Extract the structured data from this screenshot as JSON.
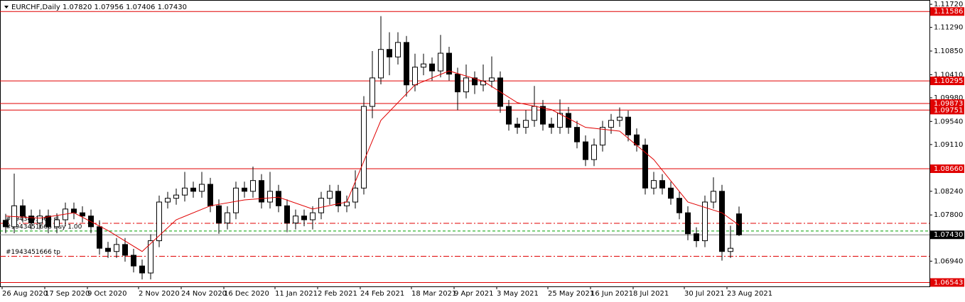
{
  "chart_data": {
    "type": "candlestick",
    "title": "EURCHF,Daily  1.07820 1.07956 1.07406 1.07430",
    "ylim": [
      1.0647,
      1.118
    ],
    "yticks": [
      {
        "value": 1.1172,
        "label": "1.11720"
      },
      {
        "value": 1.1129,
        "label": "1.11290"
      },
      {
        "value": 1.1085,
        "label": "1.10850"
      },
      {
        "value": 1.1041,
        "label": "1.10410"
      },
      {
        "value": 1.0998,
        "label": "1.09980"
      },
      {
        "value": 1.0954,
        "label": "1.09540"
      },
      {
        "value": 1.0911,
        "label": "1.09110"
      },
      {
        "value": 1.0824,
        "label": "1.08240"
      },
      {
        "value": 1.078,
        "label": "1.07800"
      },
      {
        "value": 1.0694,
        "label": "1.06940"
      }
    ],
    "categories": [
      "26 Aug 2020",
      null,
      null,
      null,
      null,
      "17 Sep 2020",
      null,
      null,
      null,
      null,
      "9 Oct 2020",
      null,
      null,
      null,
      null,
      null,
      "2 Nov 2020",
      null,
      null,
      null,
      null,
      "24 Nov 2020",
      null,
      null,
      null,
      null,
      "16 Dec 2020",
      null,
      null,
      null,
      null,
      null,
      "11 Jan 2021",
      null,
      null,
      null,
      null,
      "2 Feb 2021",
      null,
      null,
      null,
      null,
      "24 Feb 2021",
      null,
      null,
      null,
      null,
      null,
      "18 Mar 2021",
      null,
      null,
      null,
      null,
      "9 Apr 2021",
      null,
      null,
      null,
      null,
      "3 May 2021",
      null,
      null,
      null,
      null,
      null,
      "25 May 2021",
      null,
      null,
      null,
      null,
      "16 Jun 2021",
      null,
      null,
      null,
      null,
      "8 Jul 2021",
      null,
      null,
      null,
      null,
      null,
      "30 Jul 2021",
      null,
      null,
      null,
      null,
      "23 Aug 2021",
      null
    ],
    "open": [
      1.077,
      1.0758,
      1.0797,
      1.0778,
      1.0765,
      1.0778,
      1.0758,
      1.0771,
      1.0791,
      1.0784,
      1.0778,
      1.0758,
      1.0718,
      1.0712,
      1.0725,
      1.0705,
      1.0685,
      1.0672,
      1.0732,
      1.0804,
      1.0811,
      1.0817,
      1.083,
      1.0824,
      1.0837,
      1.0797,
      1.0765,
      1.0784,
      1.083,
      1.0824,
      1.0844,
      1.0804,
      1.0824,
      1.0797,
      1.0765,
      1.0778,
      1.0771,
      1.0784,
      1.0811,
      1.0824,
      1.0797,
      1.0804,
      1.083,
      1.0982,
      1.1035,
      1.1088,
      1.1074,
      1.1101,
      1.1022,
      1.1055,
      1.1061,
      1.1048,
      1.1081,
      1.1042,
      1.1009,
      1.1035,
      1.1022,
      1.1029,
      1.1035,
      1.0982,
      1.0949,
      1.0943,
      1.0956,
      1.0982,
      1.0949,
      1.0943,
      1.0969,
      1.0943,
      1.0916,
      1.0883,
      1.091,
      1.0943,
      1.0956,
      1.0962,
      1.0929,
      1.091,
      1.083,
      1.0844,
      1.083,
      1.0811,
      1.0784,
      1.0745,
      1.0732,
      1.0804,
      1.0824,
      1.0712,
      1.0782
    ],
    "high": [
      1.0782,
      1.0857,
      1.0809,
      1.079,
      1.079,
      1.079,
      1.0783,
      1.0803,
      1.0803,
      1.0796,
      1.079,
      1.077,
      1.073,
      1.0737,
      1.0737,
      1.0717,
      1.0697,
      1.0744,
      1.0816,
      1.0823,
      1.0829,
      1.086,
      1.0842,
      1.086,
      1.0849,
      1.0809,
      1.0796,
      1.0842,
      1.0842,
      1.087,
      1.0856,
      1.086,
      1.0836,
      1.0809,
      1.079,
      1.079,
      1.0796,
      1.0823,
      1.0836,
      1.0836,
      1.0816,
      1.0863,
      1.1001,
      1.1085,
      1.115,
      1.112,
      1.112,
      1.1113,
      1.108,
      1.108,
      1.1073,
      1.1115,
      1.1093,
      1.1054,
      1.106,
      1.1047,
      1.106,
      1.1075,
      1.1047,
      1.0994,
      1.0961,
      1.0975,
      1.102,
      1.0994,
      1.0961,
      1.0995,
      1.0981,
      1.0955,
      1.0928,
      1.0922,
      1.0955,
      1.0968,
      1.098,
      1.0974,
      1.0941,
      1.0922,
      1.086,
      1.0856,
      1.0842,
      1.0823,
      1.0796,
      1.0757,
      1.0816,
      1.085,
      1.0836,
      1.076,
      1.07956
    ],
    "low": [
      1.0746,
      1.0746,
      1.0766,
      1.0753,
      1.0753,
      1.0746,
      1.0746,
      1.0759,
      1.0772,
      1.0766,
      1.0746,
      1.0706,
      1.07,
      1.07,
      1.0693,
      1.0673,
      1.066,
      1.066,
      1.072,
      1.0792,
      1.0799,
      1.0805,
      1.0812,
      1.0812,
      1.0785,
      1.0745,
      1.0753,
      1.0772,
      1.0812,
      1.0812,
      1.0792,
      1.0792,
      1.0785,
      1.0748,
      1.0753,
      1.0759,
      1.0753,
      1.0772,
      1.0799,
      1.0785,
      1.0785,
      1.0792,
      1.0818,
      1.096,
      1.1023,
      1.104,
      1.106,
      1.1,
      1.101,
      1.104,
      1.103,
      1.1036,
      1.103,
      1.0975,
      1.0997,
      1.1005,
      1.101,
      1.1017,
      1.097,
      1.0937,
      1.0931,
      1.0931,
      1.0944,
      1.0937,
      1.0931,
      1.0931,
      1.0931,
      1.0904,
      1.0871,
      1.0871,
      1.0898,
      1.0931,
      1.0944,
      1.0917,
      1.0898,
      1.0818,
      1.0818,
      1.0818,
      1.0799,
      1.0772,
      1.0733,
      1.072,
      1.072,
      1.0792,
      1.0695,
      1.07,
      1.07406
    ],
    "close": [
      1.0758,
      1.0797,
      1.0778,
      1.0765,
      1.0778,
      1.0758,
      1.0771,
      1.0791,
      1.0784,
      1.0778,
      1.0758,
      1.0718,
      1.0712,
      1.0725,
      1.0705,
      1.0685,
      1.0672,
      1.0732,
      1.0804,
      1.0811,
      1.0817,
      1.083,
      1.0824,
      1.0837,
      1.0797,
      1.0765,
      1.0784,
      1.083,
      1.0824,
      1.0844,
      1.0804,
      1.0824,
      1.0797,
      1.0765,
      1.0778,
      1.0771,
      1.0784,
      1.0811,
      1.0824,
      1.0797,
      1.0804,
      1.083,
      1.0982,
      1.1035,
      1.1088,
      1.1074,
      1.1101,
      1.1022,
      1.1055,
      1.1061,
      1.1048,
      1.1081,
      1.1042,
      1.1009,
      1.1035,
      1.1022,
      1.1029,
      1.1035,
      1.0982,
      1.0949,
      1.0943,
      1.0956,
      1.0982,
      1.0949,
      1.0943,
      1.0969,
      1.0943,
      1.0916,
      1.0883,
      1.091,
      1.0943,
      1.0956,
      1.0962,
      1.0929,
      1.091,
      1.083,
      1.0844,
      1.083,
      1.0811,
      1.0784,
      1.0745,
      1.0732,
      1.0804,
      1.0824,
      1.0712,
      1.0718,
      1.0743
    ],
    "ma": {
      "color": "#e00000",
      "x": [
        0,
        4,
        8,
        12,
        16,
        20,
        24,
        28,
        32,
        36,
        40,
        44,
        48,
        52,
        56,
        60,
        64,
        68,
        72,
        76,
        80,
        84,
        86
      ],
      "values": [
        1.0778,
        1.0774,
        1.0784,
        1.0751,
        1.0712,
        1.0771,
        1.0797,
        1.0808,
        1.0813,
        1.0791,
        1.0804,
        1.0956,
        1.1022,
        1.1048,
        1.1029,
        1.0989,
        1.0976,
        1.0943,
        1.0936,
        1.0883,
        1.0804,
        1.0784,
        1.0761
      ]
    },
    "levels": {
      "color": "#e00000",
      "items": [
        {
          "value": 1.11586,
          "label": "1.11586"
        },
        {
          "value": 1.10295,
          "label": "1.10295"
        },
        {
          "value": 1.09873,
          "label": "1.09873"
        },
        {
          "value": 1.09751,
          "label": "1.09751"
        },
        {
          "value": 1.0866,
          "label": "1.08660"
        },
        {
          "value": 1.06543,
          "label": "1.06543"
        }
      ]
    },
    "current_price": {
      "value": 1.0743,
      "label": "1.07430"
    },
    "orders": [
      {
        "value": 1.07645,
        "label": "#1943451666 sl",
        "color": "#e00000"
      },
      {
        "value": 1.075,
        "label": "#1943451666 buy 1.00",
        "color": "#00a000"
      },
      {
        "value": 1.0703,
        "label": "#1943451666 tp",
        "color": "#e00000"
      }
    ]
  }
}
